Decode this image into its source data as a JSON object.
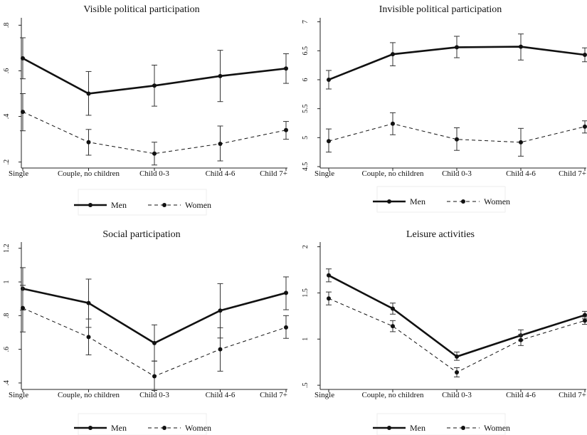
{
  "chart_data": [
    {
      "type": "line",
      "title": "Visible political participation",
      "categories": [
        "Single",
        "Couple, no children",
        "Child 0-3",
        "Child 4-6",
        "Child 7+"
      ],
      "ylim": [
        0.18,
        0.82
      ],
      "yticks": [
        0.2,
        0.4,
        0.6,
        0.8
      ],
      "ytick_labels": [
        ".2",
        ".4",
        ".6",
        ".8"
      ],
      "legend_position": "bottom",
      "series": [
        {
          "name": "Men",
          "style": "solid",
          "values": [
            0.655,
            0.5,
            0.535,
            0.577,
            0.61
          ],
          "ci_low": [
            0.565,
            0.405,
            0.445,
            0.465,
            0.545
          ],
          "ci_high": [
            0.745,
            0.597,
            0.625,
            0.69,
            0.675
          ]
        },
        {
          "name": "Women",
          "style": "dashed",
          "values": [
            0.42,
            0.287,
            0.237,
            0.28,
            0.34
          ],
          "ci_low": [
            0.337,
            0.23,
            0.187,
            0.205,
            0.3
          ],
          "ci_high": [
            0.5,
            0.343,
            0.287,
            0.358,
            0.378
          ]
        }
      ]
    },
    {
      "type": "line",
      "title": "Invisible political participation",
      "categories": [
        "Single",
        "Couple, no children",
        "Child 0-3",
        "Child 4-6",
        "Child 7+"
      ],
      "ylim": [
        4.5,
        7.02
      ],
      "yticks": [
        4.5,
        5,
        5.5,
        6,
        6.5,
        7
      ],
      "ytick_labels": [
        "4.5",
        "5",
        "5.5",
        "6",
        "6.5",
        "7"
      ],
      "legend_position": "bottom",
      "series": [
        {
          "name": "Men",
          "style": "solid",
          "values": [
            6.0,
            6.44,
            6.56,
            6.57,
            6.43
          ],
          "ci_low": [
            5.84,
            6.24,
            6.38,
            6.34,
            6.31
          ],
          "ci_high": [
            6.16,
            6.64,
            6.75,
            6.79,
            6.55
          ]
        },
        {
          "name": "Women",
          "style": "dashed",
          "values": [
            4.94,
            5.24,
            4.97,
            4.92,
            5.19
          ],
          "ci_low": [
            4.75,
            5.05,
            4.78,
            4.68,
            5.08
          ],
          "ci_high": [
            5.15,
            5.43,
            5.17,
            5.16,
            5.29
          ]
        }
      ]
    },
    {
      "type": "line",
      "title": "Social participation",
      "categories": [
        "Single",
        "Couple, no children",
        "Child 0-3",
        "Child 4-6",
        "Child 7+"
      ],
      "ylim": [
        0.37,
        1.22
      ],
      "yticks": [
        0.4,
        0.6,
        0.8,
        1.0,
        1.2
      ],
      "ytick_labels": [
        ".4",
        ".6",
        ".8",
        "1",
        "1.2"
      ],
      "legend_position": "bottom",
      "series": [
        {
          "name": "Men",
          "style": "solid",
          "values": [
            0.96,
            0.875,
            0.637,
            0.83,
            0.935
          ],
          "ci_low": [
            0.833,
            0.73,
            0.53,
            0.667,
            0.835
          ],
          "ci_high": [
            1.085,
            1.017,
            0.745,
            0.99,
            1.03
          ]
        },
        {
          "name": "Women",
          "style": "dashed",
          "values": [
            0.845,
            0.673,
            0.44,
            0.6,
            0.73
          ],
          "ci_low": [
            0.703,
            0.567,
            0.355,
            0.47,
            0.665
          ],
          "ci_high": [
            0.98,
            0.78,
            0.53,
            0.728,
            0.8
          ]
        }
      ]
    },
    {
      "type": "line",
      "title": "Leisure activities",
      "categories": [
        "Single",
        "Couple, no children",
        "Child 0-3",
        "Child 4-6",
        "Child 7+"
      ],
      "ylim": [
        0.47,
        2.02
      ],
      "yticks": [
        0.5,
        1.0,
        1.5,
        2.0
      ],
      "ytick_labels": [
        ".5",
        "1",
        "1.5",
        "2"
      ],
      "legend_position": "bottom",
      "series": [
        {
          "name": "Men",
          "style": "solid",
          "values": [
            1.69,
            1.33,
            0.81,
            1.04,
            1.26
          ],
          "ci_low": [
            1.62,
            1.27,
            0.77,
            0.99,
            1.22
          ],
          "ci_high": [
            1.76,
            1.39,
            0.86,
            1.1,
            1.3
          ]
        },
        {
          "name": "Women",
          "style": "dashed",
          "values": [
            1.44,
            1.14,
            0.64,
            0.99,
            1.2
          ],
          "ci_low": [
            1.37,
            1.08,
            0.59,
            0.93,
            1.16
          ],
          "ci_high": [
            1.51,
            1.2,
            0.69,
            1.05,
            1.24
          ]
        }
      ]
    }
  ]
}
